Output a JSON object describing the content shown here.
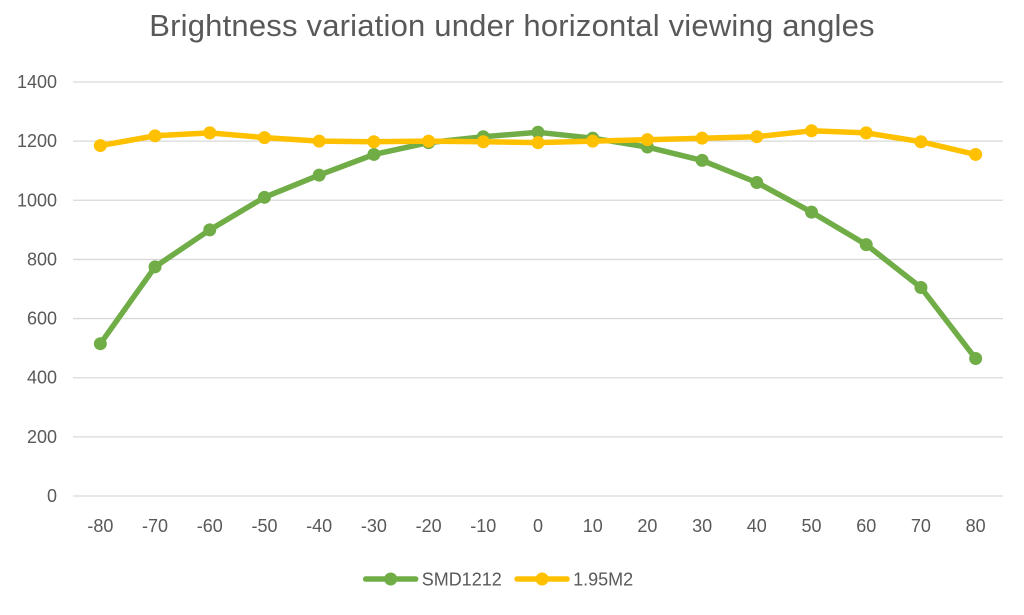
{
  "chart_data": {
    "type": "line",
    "title": "Brightness variation under horizontal viewing angles",
    "xlabel": "",
    "ylabel": "",
    "x": [
      -80,
      -70,
      -60,
      -50,
      -40,
      -30,
      -20,
      -10,
      0,
      10,
      20,
      30,
      40,
      50,
      60,
      70,
      80
    ],
    "ylim": [
      0,
      1400
    ],
    "yticks": [
      0,
      200,
      400,
      600,
      800,
      1000,
      1200,
      1400
    ],
    "grid": true,
    "legend_position": "bottom",
    "series": [
      {
        "name": "SMD1212",
        "color": "#70ad47",
        "values": [
          515,
          775,
          900,
          1010,
          1085,
          1155,
          1195,
          1215,
          1230,
          1210,
          1180,
          1135,
          1060,
          960,
          850,
          705,
          465
        ]
      },
      {
        "name": "1.95M2",
        "color": "#ffc000",
        "values": [
          1185,
          1218,
          1228,
          1212,
          1200,
          1198,
          1200,
          1198,
          1195,
          1200,
          1205,
          1210,
          1215,
          1235,
          1228,
          1198,
          1155
        ]
      }
    ]
  }
}
